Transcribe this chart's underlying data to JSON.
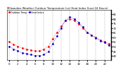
{
  "title": "Milwaukee Weather Outdoor Temperature (vs) Heat Index (Last 24 Hours)",
  "bg_color": "#ffffff",
  "plot_bg": "#ffffff",
  "grid_color": "#aaaaaa",
  "temp_color": "#ff0000",
  "hi_color": "#0000cc",
  "legend_temp": "Outdoor Temp",
  "legend_hi": "Heat Index",
  "temp_values": [
    55,
    52,
    50,
    48,
    47,
    46,
    45,
    45,
    47,
    50,
    58,
    65,
    72,
    78,
    80,
    78,
    74,
    70,
    65,
    62,
    60,
    57,
    55,
    53
  ],
  "hi_values": [
    50,
    47,
    45,
    43,
    42,
    41,
    40,
    40,
    41,
    44,
    53,
    61,
    70,
    78,
    82,
    80,
    76,
    71,
    65,
    62,
    59,
    56,
    54,
    51
  ],
  "ylim_min": 35,
  "ylim_max": 90,
  "ytick_values": [
    40,
    45,
    50,
    55,
    60,
    65,
    70,
    75,
    80,
    85
  ],
  "ytick_labels": [
    "40",
    "45",
    "50",
    "55",
    "60",
    "65",
    "70",
    "75",
    "80",
    "85"
  ],
  "xtick_step": 2,
  "title_fontsize": 2.8,
  "tick_fontsize": 2.8,
  "marker_size": 1.0,
  "line_width": 0.5,
  "legend_fontsize": 2.4,
  "spine_lw": 0.4,
  "grid_lw": 0.35,
  "right_axis": true
}
